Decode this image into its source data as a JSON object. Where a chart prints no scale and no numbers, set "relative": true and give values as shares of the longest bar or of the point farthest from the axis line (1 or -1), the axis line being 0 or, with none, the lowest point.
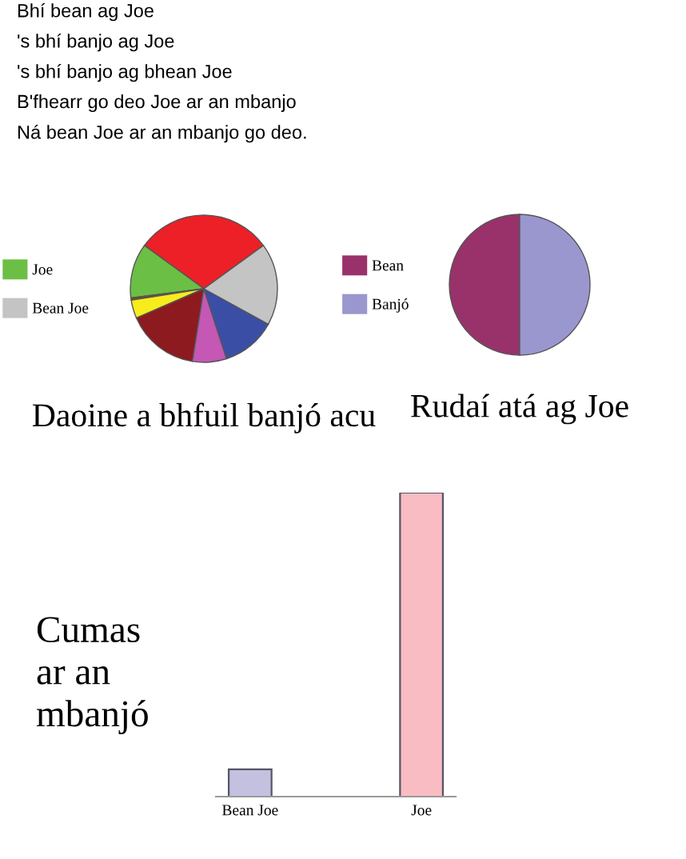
{
  "chart_data": [
    {
      "type": "other",
      "annotations": [
        "Bhí bean ag Joe",
        "'s bhí banjo ag Joe",
        "'s bhí banjo ag bhean Joe",
        "B'fhearr go deo Joe ar an mbanjo",
        "Ná bean Joe ar an mbanjo go deo."
      ]
    },
    {
      "type": "pie",
      "title": "Daoine a bhfuil banjó acu",
      "legend": "left",
      "categories": [
        null,
        "Joe",
        null,
        null,
        null,
        null,
        null,
        "Bean Joe"
      ],
      "values": [
        30,
        12,
        0.5,
        4,
        16,
        7.5,
        12,
        18
      ],
      "colors": [
        "#ed2027",
        "#6cbf45",
        "#8b4513",
        "#f7ec1c",
        "#8c1a1e",
        "#c458b4",
        "#3b4ea6",
        "#c4c4c4"
      ]
    },
    {
      "type": "pie",
      "title": "Rudaí atá ag Joe",
      "legend": "left",
      "categories": [
        "Bean",
        "Banjó"
      ],
      "values": [
        50,
        50
      ],
      "colors": [
        "#99326a",
        "#9a97cf"
      ]
    },
    {
      "type": "bar",
      "title": "Cumas ar an mbanjó",
      "relative": true,
      "categories": [
        "Bean Joe",
        "Joe"
      ],
      "values": [
        0.09,
        1
      ],
      "colors": [
        "#c4c0e0",
        "#f9bcc2"
      ]
    }
  ]
}
